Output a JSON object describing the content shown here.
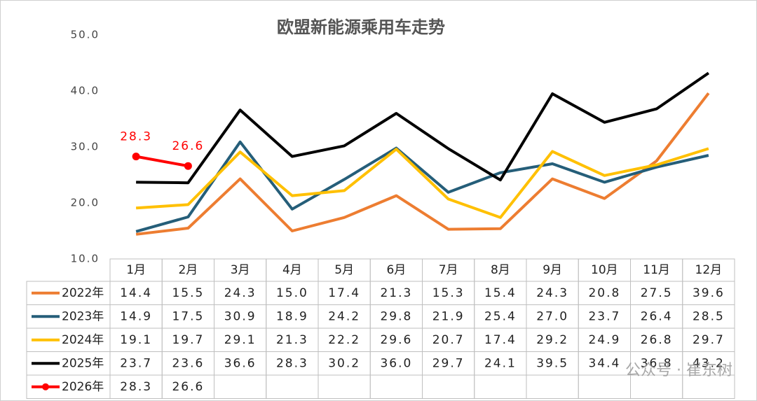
{
  "chart_data": {
    "type": "line",
    "title": "欧盟新能源乘用车走势",
    "categories": [
      "1月",
      "2月",
      "3月",
      "4月",
      "5月",
      "6月",
      "7月",
      "8月",
      "9月",
      "10月",
      "11月",
      "12月"
    ],
    "ylim": [
      10,
      50
    ],
    "yticks": [
      {
        "value": 10,
        "label": "10.0"
      },
      {
        "value": 20,
        "label": "20.0"
      },
      {
        "value": 30,
        "label": "30.0"
      },
      {
        "value": 40,
        "label": "40.0"
      },
      {
        "value": 50,
        "label": "50.0"
      }
    ],
    "grid": false,
    "series": [
      {
        "name": "2022年",
        "color": "#ED7D31",
        "values": [
          14.4,
          15.5,
          24.3,
          15.0,
          17.4,
          21.3,
          15.3,
          15.4,
          24.3,
          20.8,
          27.5,
          39.6
        ],
        "value_labels": [
          "14.4",
          "15.5",
          "24.3",
          "15.0",
          "17.4",
          "21.3",
          "15.3",
          "15.4",
          "24.3",
          "20.8",
          "27.5",
          "39.6"
        ]
      },
      {
        "name": "2023年",
        "color": "#255E79",
        "values": [
          14.9,
          17.5,
          30.9,
          18.9,
          24.2,
          29.8,
          21.9,
          25.4,
          27.0,
          23.7,
          26.4,
          28.5
        ],
        "value_labels": [
          "14.9",
          "17.5",
          "30.9",
          "18.9",
          "24.2",
          "29.8",
          "21.9",
          "25.4",
          "27.0",
          "23.7",
          "26.4",
          "28.5"
        ]
      },
      {
        "name": "2024年",
        "color": "#FFC000",
        "values": [
          19.1,
          19.7,
          29.1,
          21.3,
          22.2,
          29.6,
          20.7,
          17.4,
          29.2,
          24.9,
          26.8,
          29.7
        ],
        "value_labels": [
          "19.1",
          "19.7",
          "29.1",
          "21.3",
          "22.2",
          "29.6",
          "20.7",
          "17.4",
          "29.2",
          "24.9",
          "26.8",
          "29.7"
        ]
      },
      {
        "name": "2025年",
        "color": "#000000",
        "values": [
          23.7,
          23.6,
          36.6,
          28.3,
          30.2,
          36.0,
          29.7,
          24.1,
          39.5,
          34.4,
          36.8,
          43.2
        ],
        "value_labels": [
          "23.7",
          "23.6",
          "36.6",
          "28.3",
          "30.2",
          "36.0",
          "29.7",
          "24.1",
          "39.5",
          "34.4",
          "36.8",
          "43.2"
        ]
      },
      {
        "name": "2026年",
        "color": "#FF0000",
        "markers": true,
        "data_labels": true,
        "values": [
          28.3,
          26.6,
          null,
          null,
          null,
          null,
          null,
          null,
          null,
          null,
          null,
          null
        ],
        "value_labels": [
          "28.3",
          "26.6",
          null,
          null,
          null,
          null,
          null,
          null,
          null,
          null,
          null,
          null
        ]
      }
    ],
    "watermark": "公众号 · 崔东树"
  }
}
